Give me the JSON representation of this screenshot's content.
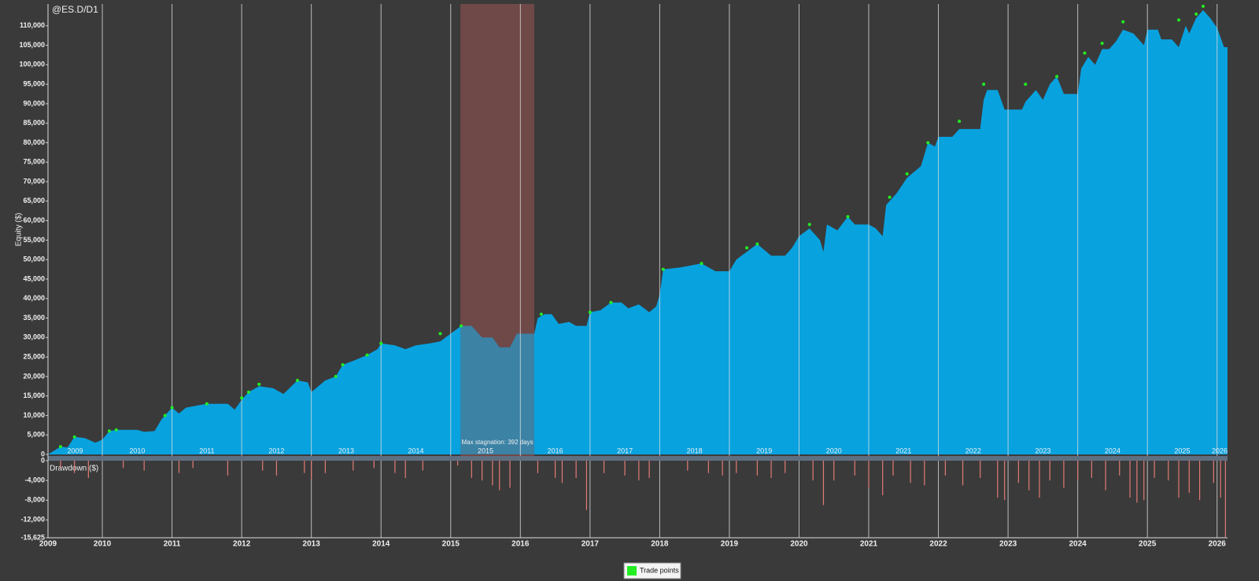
{
  "chart_data": {
    "type": "area",
    "title": "@ES.D/D1",
    "ylabel": "Equity ($)",
    "y2label": "Drawdown ($)",
    "color": "#08a2df",
    "xlim": [
      2009.22,
      2026.15
    ],
    "xticks": [
      {
        "value": 2009.22,
        "label": "2009"
      },
      2010,
      2011,
      2012,
      2013,
      2014,
      2015,
      2016,
      2017,
      2018,
      2019,
      2020,
      2021,
      2022,
      2023,
      2024,
      2025,
      2026
    ],
    "period_labels": [
      2009,
      2010,
      2011,
      2012,
      2013,
      2014,
      2015,
      2016,
      2017,
      2018,
      2019,
      2020,
      2021,
      2022,
      2023,
      2024,
      2025,
      2026
    ],
    "ylim": [
      -400,
      115600
    ],
    "yticks": [
      0,
      {
        "value": 5000,
        "label": "5,000"
      },
      {
        "value": 10000,
        "label": "10,000"
      },
      {
        "value": 15000,
        "label": "15,000"
      },
      {
        "value": 20000,
        "label": "20,000"
      },
      {
        "value": 25000,
        "label": "25,000"
      },
      {
        "value": 30000,
        "label": "30,000"
      },
      {
        "value": 35000,
        "label": "35,000"
      },
      {
        "value": 40000,
        "label": "40,000"
      },
      {
        "value": 45000,
        "label": "45,000"
      },
      {
        "value": 50000,
        "label": "50,000"
      },
      {
        "value": 55000,
        "label": "55,000"
      },
      {
        "value": 60000,
        "label": "60,000"
      },
      {
        "value": 65000,
        "label": "65,000"
      },
      {
        "value": 70000,
        "label": "70,000"
      },
      {
        "value": 75000,
        "label": "75,000"
      },
      {
        "value": 80000,
        "label": "80,000"
      },
      {
        "value": 85000,
        "label": "85,000"
      },
      {
        "value": 90000,
        "label": "90,000"
      },
      {
        "value": 95000,
        "label": "95,000"
      },
      {
        "value": 100000,
        "label": "100,000"
      },
      {
        "value": 105000,
        "label": "105,000"
      },
      {
        "value": 110000,
        "label": "110,000"
      }
    ],
    "x": [
      2009.22,
      2009.4,
      2009.5,
      2009.6,
      2009.75,
      2009.9,
      2010.0,
      2010.1,
      2010.2,
      2010.5,
      2010.6,
      2010.75,
      2010.85,
      2011.0,
      2011.1,
      2011.2,
      2011.5,
      2011.8,
      2011.9,
      2012.0,
      2012.1,
      2012.25,
      2012.45,
      2012.6,
      2012.8,
      2012.95,
      2013.0,
      2013.2,
      2013.35,
      2013.45,
      2013.6,
      2013.8,
      2013.95,
      2014.0,
      2014.2,
      2014.35,
      2014.5,
      2014.7,
      2014.85,
      2015.0,
      2015.15,
      2015.3,
      2015.45,
      2015.6,
      2015.7,
      2015.85,
      2015.95,
      2016.2,
      2016.25,
      2016.35,
      2016.45,
      2016.55,
      2016.7,
      2016.8,
      2016.95,
      2017.0,
      2017.15,
      2017.3,
      2017.45,
      2017.55,
      2017.7,
      2017.85,
      2017.95,
      2018.0,
      2018.05,
      2018.3,
      2018.6,
      2018.8,
      2019.0,
      2019.1,
      2019.25,
      2019.4,
      2019.6,
      2019.8,
      2019.9,
      2020.0,
      2020.15,
      2020.3,
      2020.35,
      2020.4,
      2020.55,
      2020.7,
      2020.8,
      2021.0,
      2021.1,
      2021.2,
      2021.25,
      2021.4,
      2021.55,
      2021.75,
      2021.85,
      2021.95,
      2022.0,
      2022.2,
      2022.3,
      2022.6,
      2022.65,
      2022.7,
      2022.85,
      2022.95,
      2023.0,
      2023.2,
      2023.25,
      2023.4,
      2023.5,
      2023.6,
      2023.7,
      2023.8,
      2023.95,
      2024.0,
      2024.05,
      2024.15,
      2024.25,
      2024.35,
      2024.45,
      2024.55,
      2024.65,
      2024.8,
      2024.95,
      2025.0,
      2025.15,
      2025.2,
      2025.35,
      2025.45,
      2025.55,
      2025.6,
      2025.7,
      2025.8,
      2025.9,
      2026.0,
      2026.05,
      2026.1,
      2026.15
    ],
    "values": [
      0,
      2000,
      1800,
      4500,
      4200,
      3000,
      3800,
      6000,
      6300,
      6300,
      5800,
      6000,
      9000,
      12000,
      10500,
      12000,
      13000,
      13000,
      11500,
      14000,
      16000,
      17500,
      17000,
      15500,
      19000,
      18500,
      16000,
      19000,
      20000,
      23000,
      24000,
      25500,
      27000,
      28500,
      28000,
      27000,
      28000,
      28500,
      29000,
      31000,
      33000,
      33000,
      30000,
      30000,
      27500,
      27500,
      31000,
      31000,
      35000,
      36000,
      36000,
      33500,
      34000,
      33000,
      33000,
      36500,
      37000,
      39000,
      39000,
      37500,
      38500,
      36500,
      38000,
      41000,
      47500,
      48000,
      49000,
      47000,
      47000,
      50000,
      52000,
      54000,
      51000,
      51000,
      53000,
      56000,
      58000,
      55000,
      52000,
      59000,
      57500,
      61000,
      59000,
      59000,
      58000,
      56000,
      64000,
      67000,
      71000,
      74000,
      80000,
      79000,
      81500,
      81500,
      83500,
      83500,
      91000,
      93500,
      93500,
      88500,
      88500,
      88500,
      90500,
      93500,
      91000,
      95000,
      97000,
      92500,
      92500,
      92500,
      99000,
      102000,
      100000,
      104000,
      104000,
      106000,
      109000,
      108000,
      105000,
      109000,
      109000,
      106500,
      106500,
      104500,
      110000,
      108000,
      112000,
      114000,
      112000,
      109500,
      107000,
      104500,
      104500
    ],
    "trade_points": {
      "name": "Trade points",
      "color": "#22ee22",
      "x": [
        2009.4,
        2009.6,
        2010.1,
        2010.2,
        2010.9,
        2011.0,
        2011.5,
        2012.0,
        2012.1,
        2012.25,
        2012.8,
        2013.35,
        2013.45,
        2013.8,
        2014.0,
        2014.85,
        2015.15,
        2016.3,
        2017.0,
        2017.3,
        2018.05,
        2018.6,
        2019.25,
        2019.4,
        2020.15,
        2020.7,
        2021.3,
        2021.55,
        2021.85,
        2022.3,
        2022.65,
        2023.25,
        2023.7,
        2024.1,
        2024.35,
        2024.65,
        2025.45,
        2025.7,
        2025.8
      ],
      "values": [
        2000,
        4500,
        6000,
        6300,
        10000,
        12000,
        13000,
        14500,
        16000,
        18000,
        19000,
        20000,
        23000,
        25500,
        28500,
        31000,
        33000,
        36000,
        36500,
        39000,
        47500,
        49000,
        53000,
        54000,
        59000,
        61000,
        66000,
        72000,
        80000,
        85500,
        95000,
        95000,
        97000,
        103000,
        105500,
        111000,
        111500,
        113000,
        115000
      ]
    },
    "stagnation": {
      "start": 2015.14,
      "end": 2016.2,
      "label": "Max stagnation: 392 days"
    },
    "y2lim": [
      -15625,
      0
    ],
    "y2ticks": [
      0,
      {
        "value": -4000,
        "label": "-4,000"
      },
      {
        "value": -8000,
        "label": "-8,000"
      },
      {
        "value": -12000,
        "label": "-12,000"
      },
      {
        "value": -15625,
        "label": "-15,625"
      }
    ],
    "drawdown": {
      "color": "#e07b73",
      "x": [
        2009.4,
        2009.6,
        2009.8,
        2010.3,
        2010.6,
        2011.1,
        2011.3,
        2011.8,
        2012.3,
        2012.5,
        2012.9,
        2013.0,
        2013.2,
        2013.6,
        2013.9,
        2014.2,
        2014.35,
        2014.6,
        2015.1,
        2015.3,
        2015.45,
        2015.6,
        2015.7,
        2015.85,
        2016.25,
        2016.5,
        2016.6,
        2016.8,
        2016.95,
        2017.2,
        2017.5,
        2017.7,
        2017.85,
        2018.4,
        2018.7,
        2018.9,
        2019.1,
        2019.4,
        2019.6,
        2019.8,
        2020.2,
        2020.35,
        2020.5,
        2020.8,
        2021.0,
        2021.2,
        2021.35,
        2021.6,
        2021.8,
        2022.1,
        2022.35,
        2022.6,
        2022.85,
        2022.95,
        2023.15,
        2023.3,
        2023.45,
        2023.6,
        2023.8,
        2024.0,
        2024.2,
        2024.4,
        2024.6,
        2024.75,
        2024.85,
        2024.95,
        2025.1,
        2025.3,
        2025.45,
        2025.6,
        2025.75,
        2025.95,
        2026.05,
        2026.12
      ],
      "values": [
        -1500,
        -2500,
        -3500,
        -1500,
        -2000,
        -2500,
        -1500,
        -3000,
        -2000,
        -3000,
        -2500,
        -3800,
        -2500,
        -2000,
        -1500,
        -2500,
        -3500,
        -2000,
        -1000,
        -3500,
        -4000,
        -5000,
        -6000,
        -5500,
        -2500,
        -3500,
        -4500,
        -3500,
        -10000,
        -2500,
        -3000,
        -4000,
        -3500,
        -2000,
        -2500,
        -3000,
        -2500,
        -3000,
        -3500,
        -2500,
        -4000,
        -9000,
        -4000,
        -3000,
        -5500,
        -7000,
        -3000,
        -4500,
        -5000,
        -3000,
        -5000,
        -3500,
        -7500,
        -8000,
        -4500,
        -6000,
        -7500,
        -4000,
        -5500,
        -4000,
        -3500,
        -6000,
        -3000,
        -7500,
        -8500,
        -8000,
        -3500,
        -4000,
        -7500,
        -6500,
        -8000,
        -4500,
        -7500,
        -15500
      ]
    }
  }
}
